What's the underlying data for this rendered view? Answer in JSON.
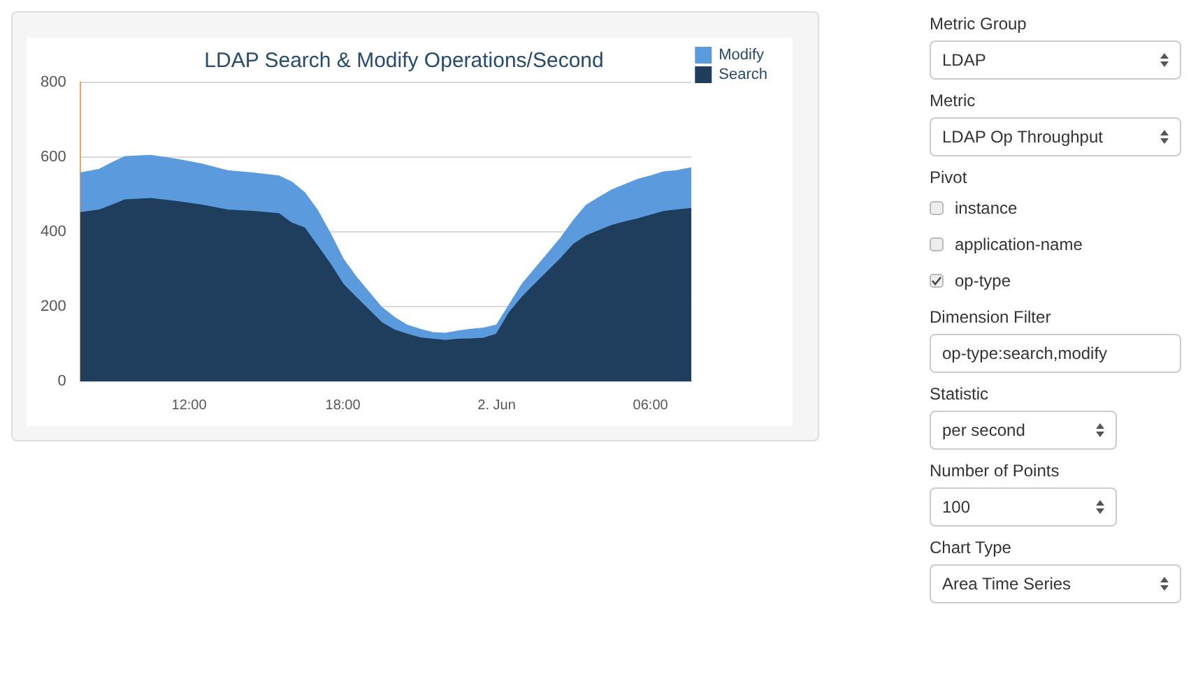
{
  "chart_data": {
    "type": "area",
    "title": "LDAP Search & Modify Operations/Second",
    "stacked": true,
    "x": [
      "--06-01T07:45",
      "--06-01T08:30",
      "--06-01T09:00",
      "--06-01T09:30",
      "--06-01T10:30",
      "--06-01T11:30",
      "--06-01T12:30",
      "--06-01T13:30",
      "--06-01T14:30",
      "--06-01T15:30",
      "--06-01T16:00",
      "--06-01T16:30",
      "--06-01T17:00",
      "--06-01T17:30",
      "--06-01T18:00",
      "--06-01T18:30",
      "--06-01T19:00",
      "--06-01T19:30",
      "--06-01T20:00",
      "--06-01T20:30",
      "--06-01T21:00",
      "--06-01T21:30",
      "--06-01T22:00",
      "--06-01T22:30",
      "--06-01T23:00",
      "--06-01T23:30",
      "--06-02T00:00",
      "--06-02T00:30",
      "--06-02T01:00",
      "--06-02T01:30",
      "--06-02T02:00",
      "--06-02T02:30",
      "--06-02T03:00",
      "--06-02T03:30",
      "--06-02T04:00",
      "--06-02T04:30",
      "--06-02T05:00",
      "--06-02T05:30",
      "--06-02T06:00",
      "--06-02T06:30",
      "--06-02T07:00",
      "--06-02T07:36"
    ],
    "series": [
      {
        "name": "Search",
        "color": "#1f3d5c",
        "values": [
          451,
          458,
          471,
          485,
          489,
          481,
          471,
          458,
          454,
          448,
          423,
          410,
          362,
          314,
          260,
          225,
          191,
          157,
          137,
          126,
          116,
          112,
          109,
          112,
          113,
          115,
          126,
          184,
          225,
          260,
          294,
          328,
          366,
          389,
          403,
          417,
          426,
          434,
          444,
          454,
          458,
          462
        ]
      },
      {
        "name": "Modify",
        "color": "#5b9bdd",
        "values": [
          106,
          109,
          114,
          116,
          115,
          113,
          110,
          105,
          103,
          101,
          110,
          95,
          96,
          82,
          68,
          55,
          48,
          41,
          34,
          24,
          23,
          18,
          19,
          22,
          26,
          27,
          24,
          21,
          35,
          41,
          48,
          55,
          64,
          82,
          89,
          95,
          100,
          106,
          105,
          106,
          105,
          109
        ]
      }
    ],
    "xlim": [
      "--06-01T07:45",
      "--06-02T07:36"
    ],
    "xticks": [
      {
        "value": "--06-01T12:00",
        "label": "12:00"
      },
      {
        "value": "--06-01T18:00",
        "label": "18:00"
      },
      {
        "value": "--06-02T00:00",
        "label": "2. Jun"
      },
      {
        "value": "--06-02T06:00",
        "label": "06:00"
      }
    ],
    "ylim": [
      0,
      800
    ],
    "yticks": [
      0,
      200,
      400,
      600,
      800
    ],
    "grid": "y",
    "legend": "top right",
    "marker": "none",
    "annotations": [
      "Metric Group",
      "LDAP",
      "Metric",
      "LDAP Op Throughput",
      "Pivot",
      "instance",
      "application-name",
      "op-type",
      "Dimension Filter",
      "op-type:search,modify",
      "Statistic",
      "per second",
      "Number of Points",
      "100",
      "Chart Type",
      "Area Time Series"
    ]
  }
}
